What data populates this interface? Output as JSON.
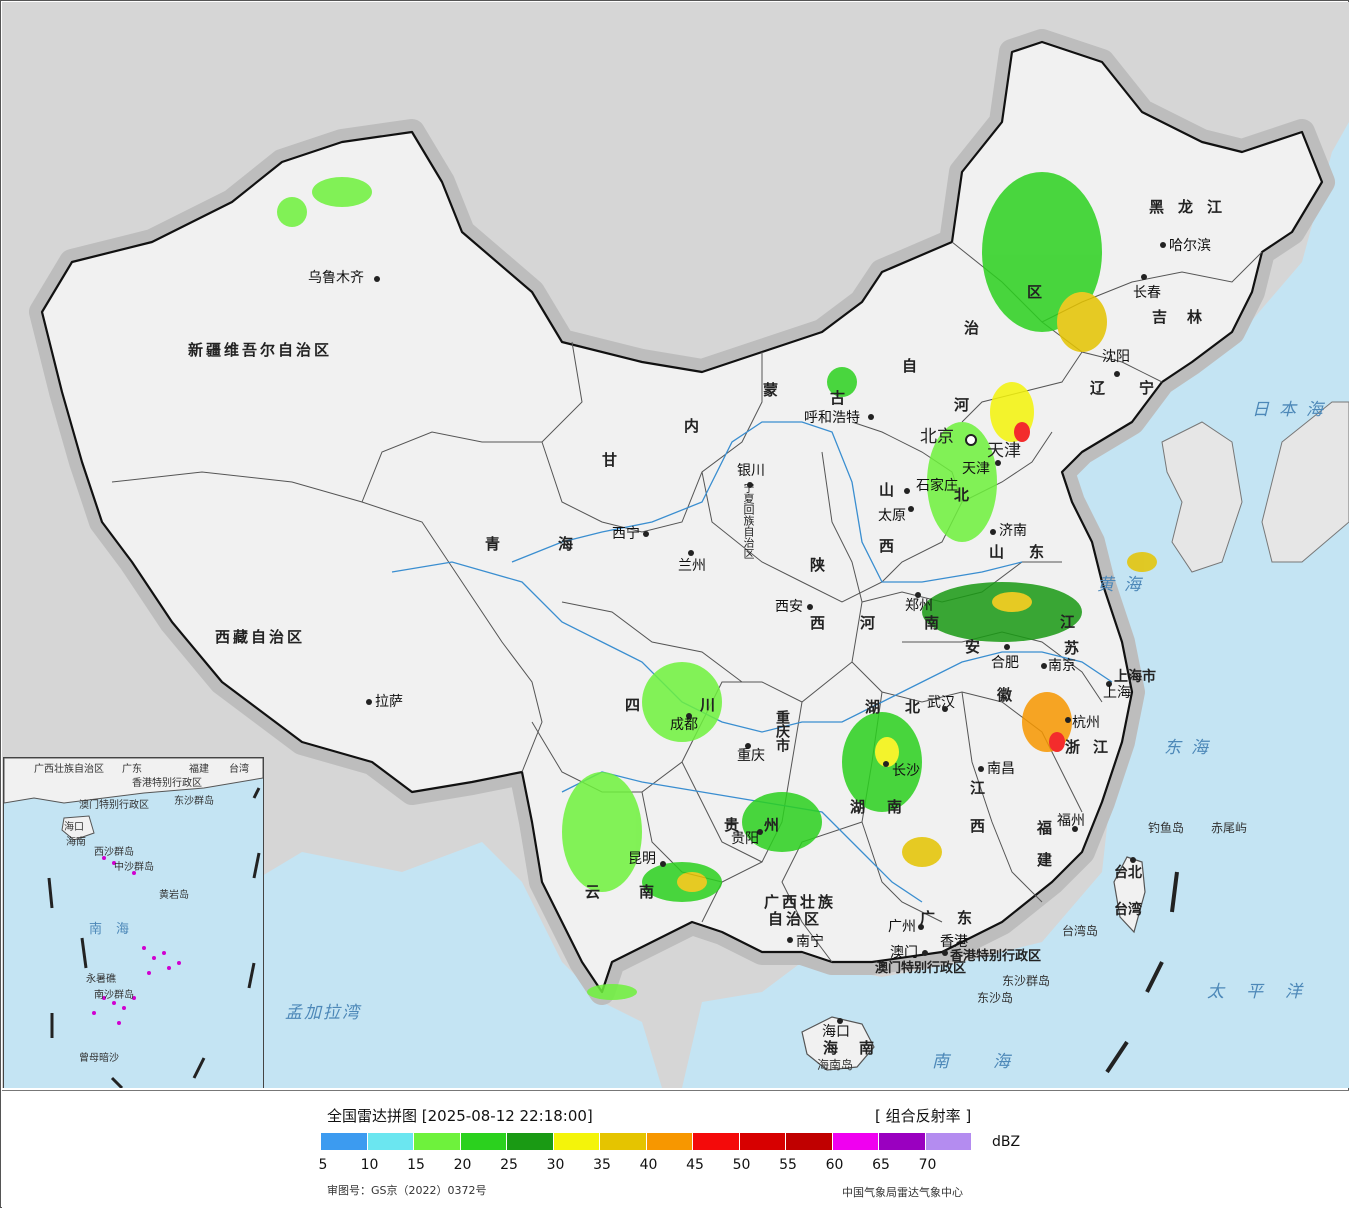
{
  "legend": {
    "title": "全国雷达拼图 [2025-08-12 22:18:00]",
    "product": "[ 组合反射率 ]",
    "unit": "dBZ",
    "colors": [
      "#3c9bf0",
      "#6be6f0",
      "#6ef23c",
      "#2bd11e",
      "#1a9a14",
      "#f4f40a",
      "#e5c400",
      "#f79700",
      "#f40a0a",
      "#d70000",
      "#c00000",
      "#f000f0",
      "#9a00c0",
      "#b48cf0"
    ],
    "ticks": [
      "5",
      "10",
      "15",
      "20",
      "25",
      "30",
      "35",
      "40",
      "45",
      "50",
      "55",
      "60",
      "65",
      "70"
    ],
    "approval": "审图号：GS京（2022）0372号",
    "credit": "中国气象局雷达气象中心"
  },
  "provinces": {
    "xinjiang": "新疆维吾尔自治区",
    "xizang": "西藏自治区",
    "qinghai_1": "青",
    "qinghai_2": "海",
    "gansu": "甘",
    "sichuan_1": "四",
    "sichuan_2": "川",
    "yunnan_1": "云",
    "yunnan_2": "南",
    "guizhou_1": "贵",
    "guizhou_2": "州",
    "guangxi_1": "广西壮族",
    "guangxi_2": "自治区",
    "guangdong_1": "广",
    "guangdong_2": "东",
    "hunan_1": "湖",
    "hunan_2": "南",
    "hubei_1": "湖",
    "hubei_2": "北",
    "jiangxi_1": "江",
    "jiangxi_2": "西",
    "fujian_1": "福",
    "fujian_2": "建",
    "zhejiang_1": "浙",
    "zhejiang_2": "江",
    "anhui_1": "安",
    "anhui_2": "徽",
    "jiangsu_1": "江",
    "jiangsu_2": "苏",
    "shandong_1": "山",
    "shandong_2": "东",
    "henan_1": "河",
    "henan_2": "南",
    "shanxi_1": "山",
    "shanxi_2": "西",
    "shaanxi_1": "陕",
    "shaanxi_2": "西",
    "hebei_1": "河",
    "hebei_2": "北",
    "neimenggu_1": "内",
    "neimenggu_2": "蒙",
    "neimenggu_3": "古",
    "neimenggu_4": "自",
    "neimenggu_5": "治",
    "neimenggu_6": "区",
    "heilongjiang": "黑龙江",
    "jilin": "吉林",
    "liaoning_1": "辽",
    "liaoning_2": "宁",
    "ningxia": "宁夏回族自治区",
    "chongqing": "重庆市",
    "shanghai": "上海市",
    "taiwan_1": "台北",
    "taiwan_2": "台湾",
    "hainan_1": "海",
    "hainan_2": "南",
    "hongkong": "香港特别行政区",
    "macau": "澳门特别行政区",
    "beijing": "北京",
    "tianjin": "天津"
  },
  "cities": {
    "urumqi": "乌鲁木齐",
    "lhasa": "拉萨",
    "xining": "西宁",
    "lanzhou": "兰州",
    "yinchuan": "银川",
    "huhehaote": "呼和浩特",
    "beijing": "北京",
    "tianjin": "天津",
    "shijiazhuang": "石家庄",
    "taiyuan": "太原",
    "jinan": "济南",
    "zhengzhou": "郑州",
    "xian": "西安",
    "chengdu": "成都",
    "chongqing": "重庆",
    "wuhan": "武汉",
    "hefei": "合肥",
    "nanjing": "南京",
    "shanghai": "上海",
    "hangzhou": "杭州",
    "nanchang": "南昌",
    "changsha": "长沙",
    "guiyang": "贵阳",
    "kunming": "昆明",
    "nanning": "南宁",
    "guangzhou": "广州",
    "aomen": "澳门",
    "hongkong": "香港",
    "fuzhou": "福州",
    "haikou": "海口",
    "shenyang": "沈阳",
    "changchun": "长春",
    "harbin": "哈尔滨",
    "taipei": "台北"
  },
  "seas": {
    "japan_sea": "日本海",
    "yellow_sea": "黄海",
    "east_sea": "东海",
    "pacific": "太平洋",
    "south_sea": "南海",
    "bay_bengal": "孟加拉湾"
  },
  "islands": {
    "diaoyu": "钓鱼岛",
    "chiwei": "赤尾屿",
    "dongsha_islands": "东沙群岛",
    "dongsha": "东沙岛",
    "hainan_island": "海南岛",
    "taiwan_island": "台湾岛"
  },
  "inset": {
    "labels": [
      "广西壮族自治区",
      "广东",
      "福建",
      "台湾",
      "香港特别行政区",
      "澳门特别行政区",
      "东沙群岛",
      "海口",
      "海南",
      "西沙群岛",
      "中沙群岛",
      "黄岩岛",
      "南海",
      "永暑礁",
      "南沙群岛",
      "曾母暗沙"
    ]
  }
}
